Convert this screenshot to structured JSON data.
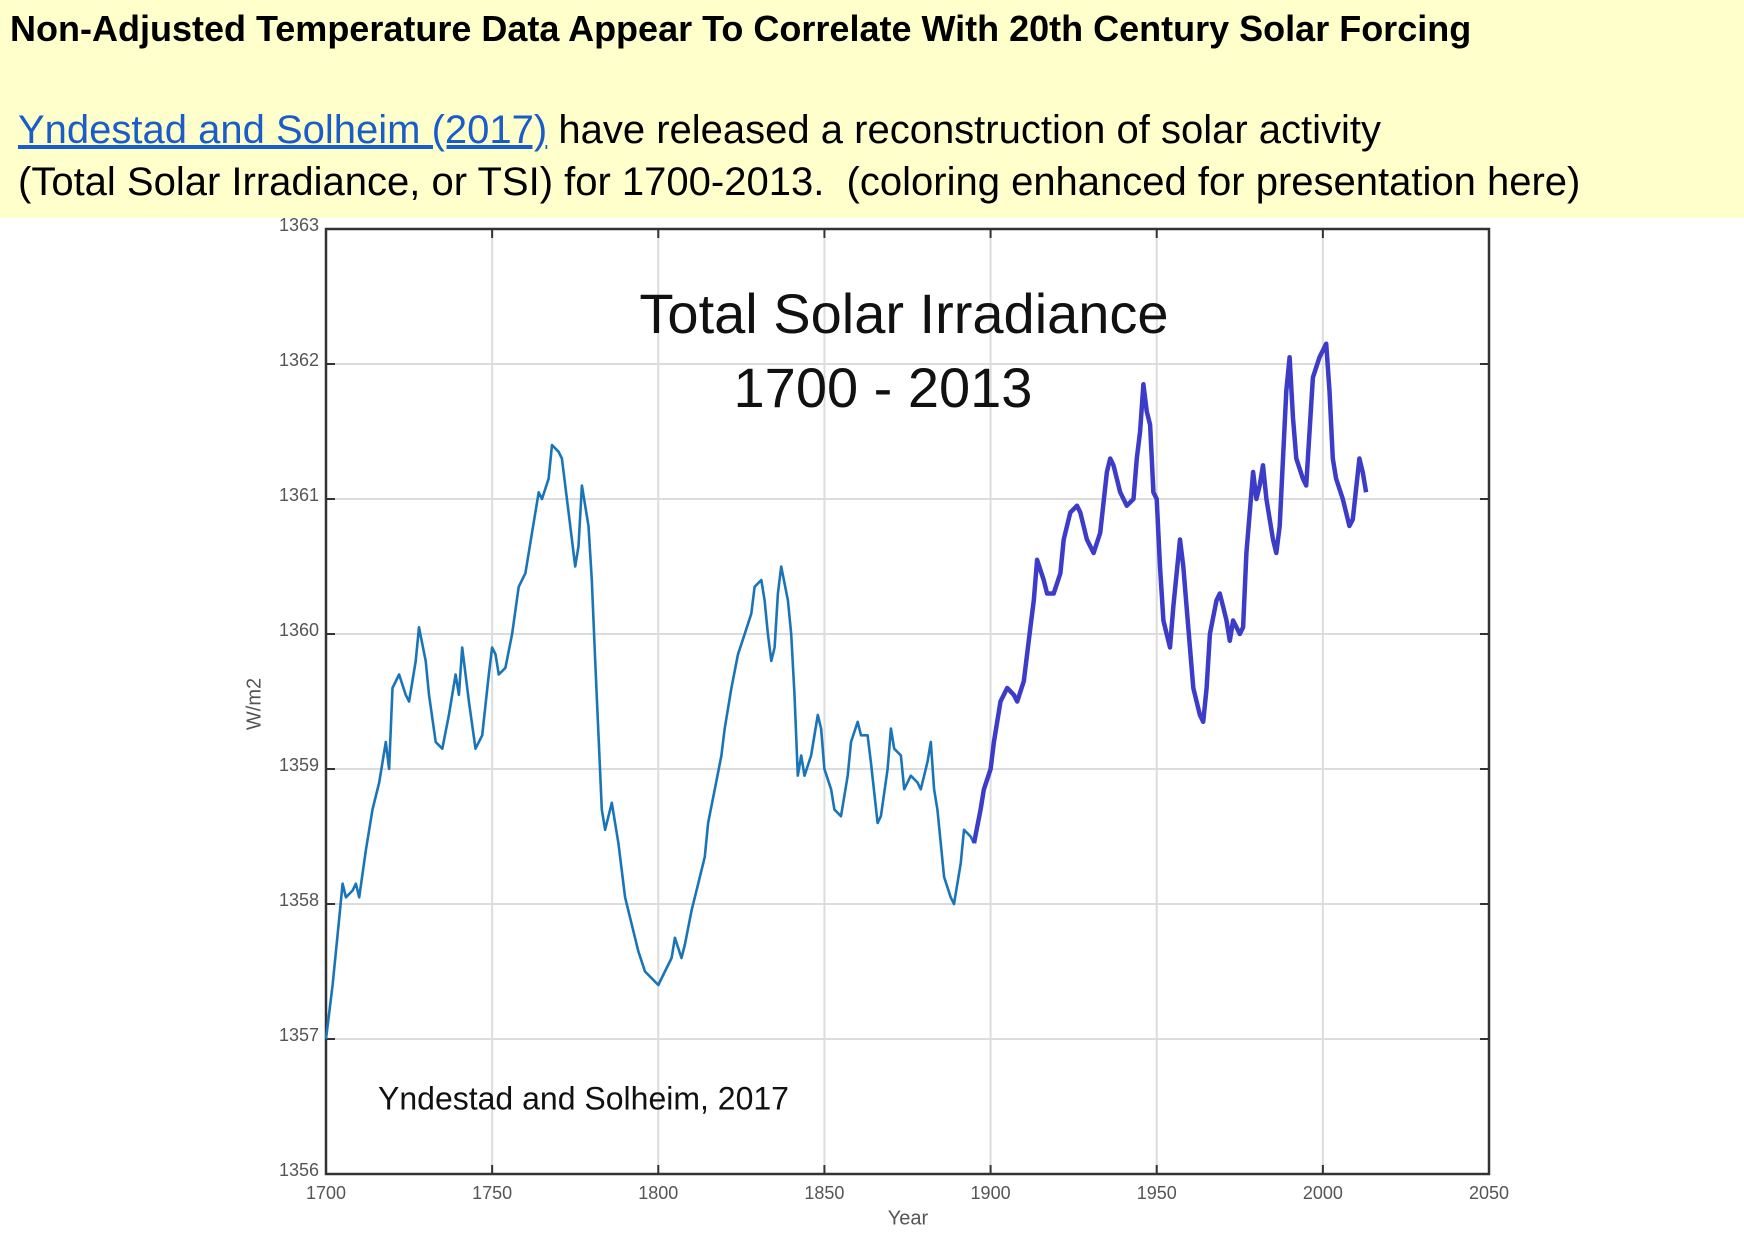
{
  "header": {
    "title": "Non-Adjusted Temperature Data Appear To Correlate With 20th Century Solar Forcing",
    "link": "Yndestad and Solheim (2017)",
    "line1": " have released a reconstruction of solar activity",
    "line2": "(Total Solar Irradiance, or TSI) for 1700-2013.  (coloring enhanced for presentation here)"
  },
  "chart_data": {
    "type": "line",
    "title": "Total Solar Irradiance",
    "subtitle": "1700 - 2013",
    "annotation": "Yndestad and Solheim, 2017",
    "xlabel": "Year",
    "ylabel": "W/m2",
    "xlim": [
      1700,
      2050
    ],
    "xticks": [
      1700,
      1750,
      1800,
      1850,
      1900,
      1950,
      2000,
      2050
    ],
    "ylim": [
      1356,
      1363
    ],
    "yticks": [
      1356,
      1357,
      1358,
      1359,
      1360,
      1361,
      1362,
      1363
    ],
    "grid": true,
    "series": [
      {
        "color": "#1a75b8",
        "x": [
          1700,
          1702,
          1704,
          1705,
          1706,
          1708,
          1709,
          1710,
          1712,
          1714,
          1716,
          1718,
          1719,
          1720,
          1722,
          1724,
          1725,
          1727,
          1728,
          1730,
          1731,
          1733,
          1735,
          1737,
          1739,
          1740,
          1741,
          1743,
          1745,
          1747,
          1749,
          1750,
          1751,
          1752,
          1754,
          1756,
          1758,
          1760,
          1762,
          1764,
          1765,
          1767,
          1768,
          1770,
          1771,
          1773,
          1775,
          1776,
          1777,
          1779,
          1780,
          1781,
          1783,
          1784,
          1786,
          1788,
          1790,
          1792,
          1794,
          1796,
          1798,
          1800,
          1802,
          1804,
          1805,
          1807,
          1808,
          1810,
          1812,
          1814,
          1815,
          1817,
          1819,
          1820,
          1822,
          1824,
          1826,
          1828,
          1829,
          1831,
          1832,
          1833,
          1834,
          1835,
          1836,
          1837,
          1839,
          1840,
          1841,
          1842,
          1843,
          1844,
          1846,
          1848,
          1849,
          1850,
          1852,
          1853,
          1855,
          1857,
          1858,
          1860,
          1861,
          1863,
          1864,
          1866,
          1867,
          1869,
          1870,
          1871,
          1873,
          1874,
          1876,
          1878,
          1879,
          1881,
          1882,
          1883,
          1884,
          1886,
          1888,
          1889,
          1891,
          1892,
          1894,
          1895
        ],
        "values": [
          1357.0,
          1357.4,
          1357.9,
          1358.15,
          1358.05,
          1358.1,
          1358.15,
          1358.05,
          1358.4,
          1358.7,
          1358.9,
          1359.2,
          1359.0,
          1359.6,
          1359.7,
          1359.55,
          1359.5,
          1359.8,
          1360.05,
          1359.8,
          1359.55,
          1359.2,
          1359.15,
          1359.4,
          1359.7,
          1359.55,
          1359.9,
          1359.5,
          1359.15,
          1359.25,
          1359.7,
          1359.9,
          1359.85,
          1359.7,
          1359.75,
          1360.0,
          1360.35,
          1360.45,
          1360.75,
          1361.05,
          1361.0,
          1361.15,
          1361.4,
          1361.35,
          1361.3,
          1360.9,
          1360.5,
          1360.65,
          1361.1,
          1360.8,
          1360.4,
          1359.8,
          1358.7,
          1358.55,
          1358.75,
          1358.45,
          1358.05,
          1357.85,
          1357.65,
          1357.5,
          1357.45,
          1357.4,
          1357.5,
          1357.6,
          1357.75,
          1357.6,
          1357.7,
          1357.95,
          1358.15,
          1358.35,
          1358.6,
          1358.85,
          1359.1,
          1359.3,
          1359.6,
          1359.85,
          1360.0,
          1360.15,
          1360.35,
          1360.4,
          1360.25,
          1360.0,
          1359.8,
          1359.9,
          1360.3,
          1360.5,
          1360.25,
          1360.0,
          1359.55,
          1358.95,
          1359.1,
          1358.95,
          1359.1,
          1359.4,
          1359.3,
          1359.0,
          1358.85,
          1358.7,
          1358.65,
          1358.95,
          1359.2,
          1359.35,
          1359.25,
          1359.25,
          1359.05,
          1358.6,
          1358.65,
          1359.0,
          1359.3,
          1359.15,
          1359.1,
          1358.85,
          1358.95,
          1358.9,
          1358.85,
          1359.05,
          1359.2,
          1358.85,
          1358.7,
          1358.2,
          1358.05,
          1358.0,
          1358.3,
          1358.55,
          1358.5,
          1358.45
        ]
      },
      {
        "color": "#3c3cc8",
        "x": [
          1895,
          1897,
          1898,
          1900,
          1901,
          1903,
          1905,
          1907,
          1908,
          1910,
          1912,
          1913,
          1914,
          1916,
          1917,
          1919,
          1921,
          1922,
          1924,
          1926,
          1927,
          1929,
          1931,
          1933,
          1935,
          1936,
          1937,
          1939,
          1941,
          1943,
          1944,
          1945,
          1946,
          1947,
          1948,
          1949,
          1950,
          1951,
          1952,
          1954,
          1955,
          1957,
          1958,
          1959,
          1961,
          1963,
          1964,
          1965,
          1966,
          1968,
          1969,
          1970,
          1971,
          1972,
          1973,
          1974,
          1975,
          1976,
          1977,
          1979,
          1980,
          1981,
          1982,
          1983,
          1985,
          1986,
          1987,
          1988,
          1989,
          1990,
          1991,
          1992,
          1994,
          1995,
          1997,
          1999,
          2001,
          2002,
          2003,
          2004,
          2006,
          2008,
          2009,
          2011,
          2012,
          2013
        ],
        "values": [
          1358.45,
          1358.7,
          1358.85,
          1359.0,
          1359.2,
          1359.5,
          1359.6,
          1359.55,
          1359.5,
          1359.65,
          1360.05,
          1360.25,
          1360.55,
          1360.4,
          1360.3,
          1360.3,
          1360.45,
          1360.7,
          1360.9,
          1360.95,
          1360.9,
          1360.7,
          1360.6,
          1360.75,
          1361.2,
          1361.3,
          1361.25,
          1361.05,
          1360.95,
          1361.0,
          1361.3,
          1361.5,
          1361.85,
          1361.65,
          1361.55,
          1361.05,
          1361.0,
          1360.5,
          1360.1,
          1359.9,
          1360.2,
          1360.7,
          1360.5,
          1360.2,
          1359.6,
          1359.4,
          1359.35,
          1359.6,
          1360.0,
          1360.25,
          1360.3,
          1360.2,
          1360.1,
          1359.95,
          1360.1,
          1360.05,
          1360.0,
          1360.05,
          1360.6,
          1361.2,
          1361.0,
          1361.1,
          1361.25,
          1361.0,
          1360.7,
          1360.6,
          1360.8,
          1361.3,
          1361.8,
          1362.05,
          1361.6,
          1361.3,
          1361.15,
          1361.1,
          1361.9,
          1362.05,
          1362.15,
          1361.8,
          1361.3,
          1361.15,
          1361.0,
          1360.8,
          1360.85,
          1361.3,
          1361.2,
          1361.05
        ]
      }
    ]
  }
}
